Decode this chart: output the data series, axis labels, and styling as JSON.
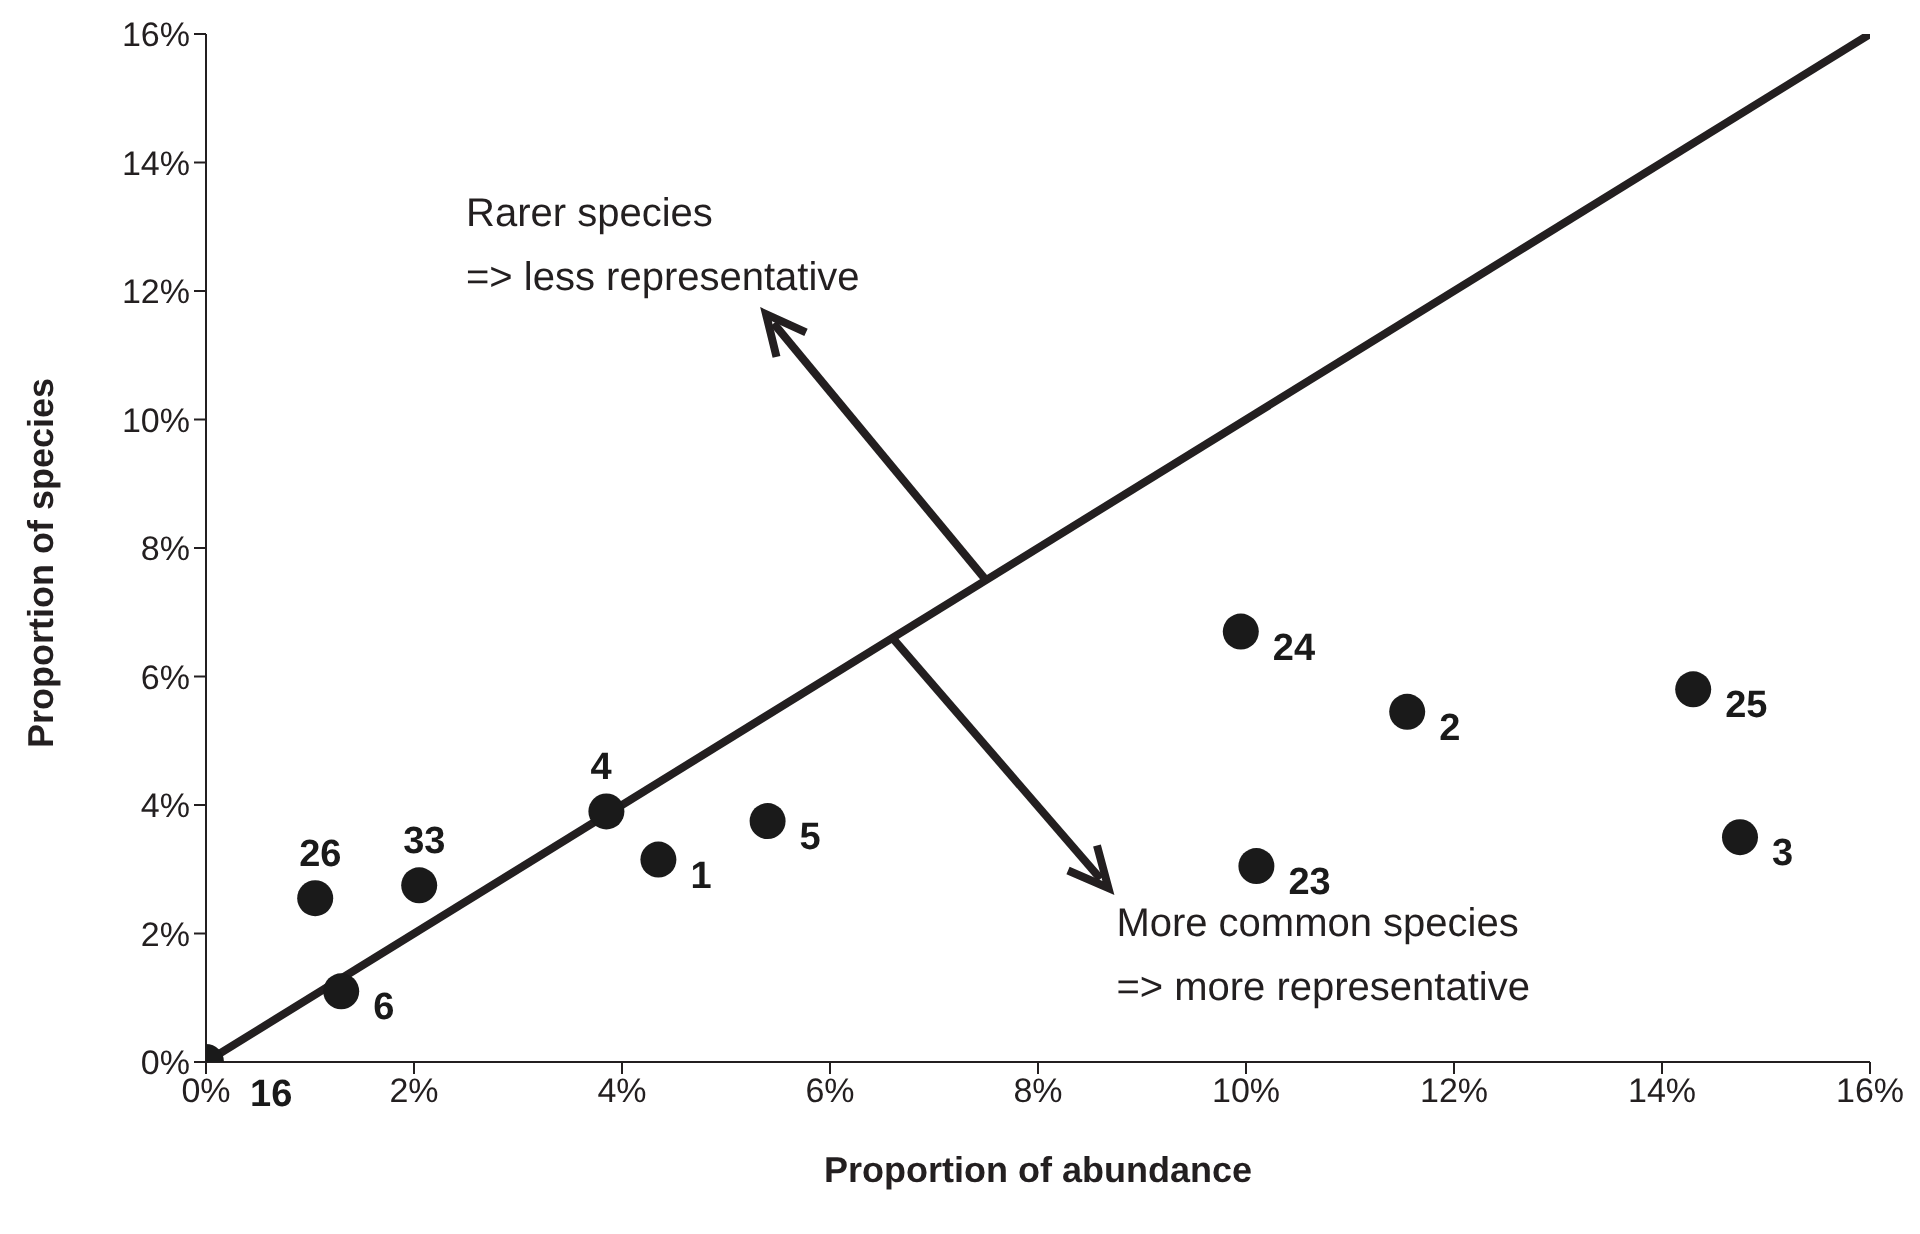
{
  "chart_data": {
    "type": "scatter",
    "xlabel": "Proportion of abundance",
    "ylabel": "Proportion of species",
    "marker": "circle",
    "xlim": [
      0,
      16
    ],
    "xticks": [
      {
        "value": 0,
        "label": "0%"
      },
      {
        "value": 2,
        "label": "2%"
      },
      {
        "value": 4,
        "label": "4%"
      },
      {
        "value": 6,
        "label": "6%"
      },
      {
        "value": 8,
        "label": "8%"
      },
      {
        "value": 10,
        "label": "10%"
      },
      {
        "value": 12,
        "label": "12%"
      },
      {
        "value": 14,
        "label": "14%"
      },
      {
        "value": 16,
        "label": "16%"
      }
    ],
    "ylim": [
      0,
      16
    ],
    "yticks": [
      {
        "value": 0,
        "label": "0%"
      },
      {
        "value": 2,
        "label": "2%"
      },
      {
        "value": 4,
        "label": "4%"
      },
      {
        "value": 6,
        "label": "6%"
      },
      {
        "value": 8,
        "label": "8%"
      },
      {
        "value": 10,
        "label": "10%"
      },
      {
        "value": 12,
        "label": "12%"
      },
      {
        "value": 14,
        "label": "14%"
      },
      {
        "value": 16,
        "label": "16%"
      }
    ],
    "series": [
      {
        "type": "scatter",
        "color": "#1a1a1a",
        "x": [
          0,
          1.3,
          1.05,
          2.05,
          3.85,
          4.35,
          5.4,
          9.95,
          10.1,
          11.55,
          14.3,
          14.75
        ],
        "values": [
          0,
          1.1,
          2.55,
          2.75,
          3.9,
          3.15,
          3.75,
          6.7,
          3.05,
          5.45,
          5.8,
          3.5
        ]
      },
      {
        "type": "line",
        "color": "#231f20",
        "marker": "none",
        "x": [
          0,
          16
        ],
        "values": [
          0,
          16
        ]
      }
    ],
    "annotations": [
      {
        "text": "Rarer species\n=> less representative",
        "x": 7.5,
        "y": 7.5
      },
      {
        "text": "More common species\n=> more representative",
        "x": 6.6,
        "y": 6.6
      },
      {
        "text": "16",
        "x": 0,
        "y": 0
      },
      {
        "text": "6",
        "x": 1.3,
        "y": 1.1
      },
      {
        "text": "26",
        "x": 1.05,
        "y": 2.55
      },
      {
        "text": "33",
        "x": 2.05,
        "y": 2.75
      },
      {
        "text": "4",
        "x": 3.85,
        "y": 3.9
      },
      {
        "text": "1",
        "x": 4.35,
        "y": 3.15
      },
      {
        "text": "5",
        "x": 5.4,
        "y": 3.75
      },
      {
        "text": "24",
        "x": 9.95,
        "y": 6.7
      },
      {
        "text": "23",
        "x": 10.1,
        "y": 3.05
      },
      {
        "text": "2",
        "x": 11.55,
        "y": 5.45
      },
      {
        "text": "25",
        "x": 14.3,
        "y": 5.8
      },
      {
        "text": "3",
        "x": 14.75,
        "y": 3.5
      }
    ]
  }
}
